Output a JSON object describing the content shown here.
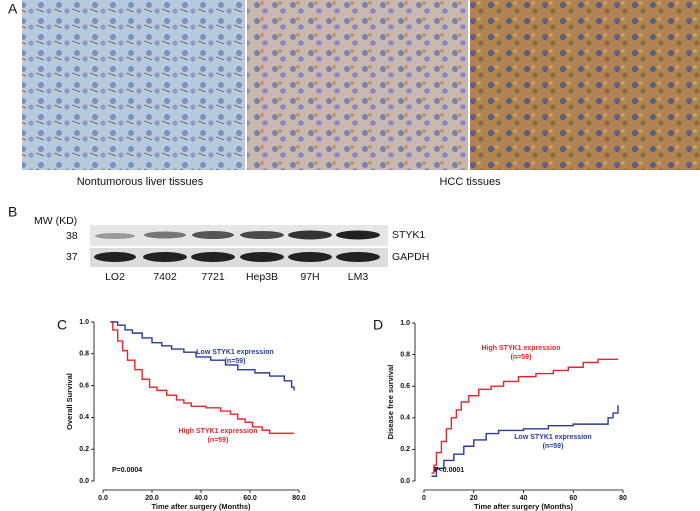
{
  "panel_a": {
    "label": "A",
    "captions": [
      "Nontumorous liver tissues",
      "HCC tissues"
    ]
  },
  "panel_b": {
    "label": "B",
    "mw_label": "MW (KD)",
    "mw": [
      38,
      37
    ],
    "proteins": [
      "STYK1",
      "GAPDH"
    ],
    "lanes": [
      "LO2",
      "7402",
      "7721",
      "Hep3B",
      "97H",
      "LM3"
    ]
  },
  "chart_data": [
    {
      "type": "step",
      "panel_label": "C",
      "ylabel": "Overall Survival",
      "xlabel": "Time after surgery (Months)",
      "xlim": [
        0,
        80
      ],
      "ylim": [
        0,
        1
      ],
      "xticks": [
        {
          "value": 0,
          "label": "0.0"
        },
        {
          "value": 20,
          "label": "20.0"
        },
        {
          "value": 40,
          "label": "40.0"
        },
        {
          "value": 60,
          "label": "60.0"
        },
        {
          "value": 80,
          "label": "80.0"
        }
      ],
      "yticks": [
        {
          "value": 0,
          "label": "0.0"
        },
        0.2,
        0.4,
        0.6,
        0.8,
        {
          "value": 1,
          "label": "1.0"
        }
      ],
      "annotations": [
        "(n=59)",
        "(n=59)",
        "P=0.0004"
      ],
      "series": [
        {
          "name": "Low STYK1 expression",
          "color": "#2b3a96",
          "x": [
            3,
            6,
            9,
            12,
            16,
            20,
            24,
            28,
            33,
            38,
            44,
            50,
            55,
            62,
            68,
            74,
            77,
            78
          ],
          "values": [
            1.0,
            0.98,
            0.95,
            0.93,
            0.9,
            0.87,
            0.85,
            0.83,
            0.81,
            0.78,
            0.76,
            0.73,
            0.7,
            0.68,
            0.66,
            0.63,
            0.59,
            0.57
          ]
        },
        {
          "name": "High STYK1 expression",
          "color": "#e2262c",
          "x": [
            3,
            4,
            6,
            8,
            10,
            13,
            16,
            19,
            22,
            26,
            30,
            33,
            36,
            42,
            48,
            52,
            55,
            58,
            61,
            65,
            68,
            78
          ],
          "values": [
            1.0,
            0.95,
            0.88,
            0.82,
            0.76,
            0.7,
            0.64,
            0.59,
            0.57,
            0.54,
            0.51,
            0.49,
            0.47,
            0.46,
            0.44,
            0.42,
            0.39,
            0.37,
            0.34,
            0.32,
            0.3,
            0.3
          ]
        }
      ]
    },
    {
      "type": "step",
      "panel_label": "D",
      "ylabel": "Disease free survival",
      "xlabel": "Time after surgery (Months)",
      "xlim": [
        0,
        80
      ],
      "ylim": [
        0,
        1
      ],
      "xticks": [
        0,
        20,
        40,
        60,
        80
      ],
      "yticks": [
        {
          "value": 0,
          "label": "0.0"
        },
        0.2,
        0.4,
        0.6,
        0.8,
        {
          "value": 1,
          "label": "1.0"
        }
      ],
      "annotations": [
        "(n=59)",
        "(n=59)",
        "P<0.0001"
      ],
      "series": [
        {
          "name": "High STYK1 expression",
          "color": "#e2262c",
          "x": [
            3,
            4,
            5,
            7,
            9,
            11,
            13,
            15,
            18,
            22,
            27,
            32,
            38,
            45,
            52,
            58,
            64,
            70,
            78
          ],
          "values": [
            0.05,
            0.1,
            0.18,
            0.25,
            0.33,
            0.4,
            0.45,
            0.5,
            0.54,
            0.58,
            0.6,
            0.63,
            0.66,
            0.68,
            0.7,
            0.72,
            0.75,
            0.77,
            0.77
          ]
        },
        {
          "name": "Low STYK1 expression",
          "color": "#2b3a96",
          "x": [
            3,
            5,
            8,
            12,
            16,
            20,
            25,
            30,
            40,
            50,
            60,
            70,
            74,
            76,
            78
          ],
          "values": [
            0.03,
            0.08,
            0.13,
            0.17,
            0.22,
            0.26,
            0.3,
            0.32,
            0.33,
            0.35,
            0.36,
            0.36,
            0.4,
            0.43,
            0.48
          ]
        }
      ]
    }
  ]
}
